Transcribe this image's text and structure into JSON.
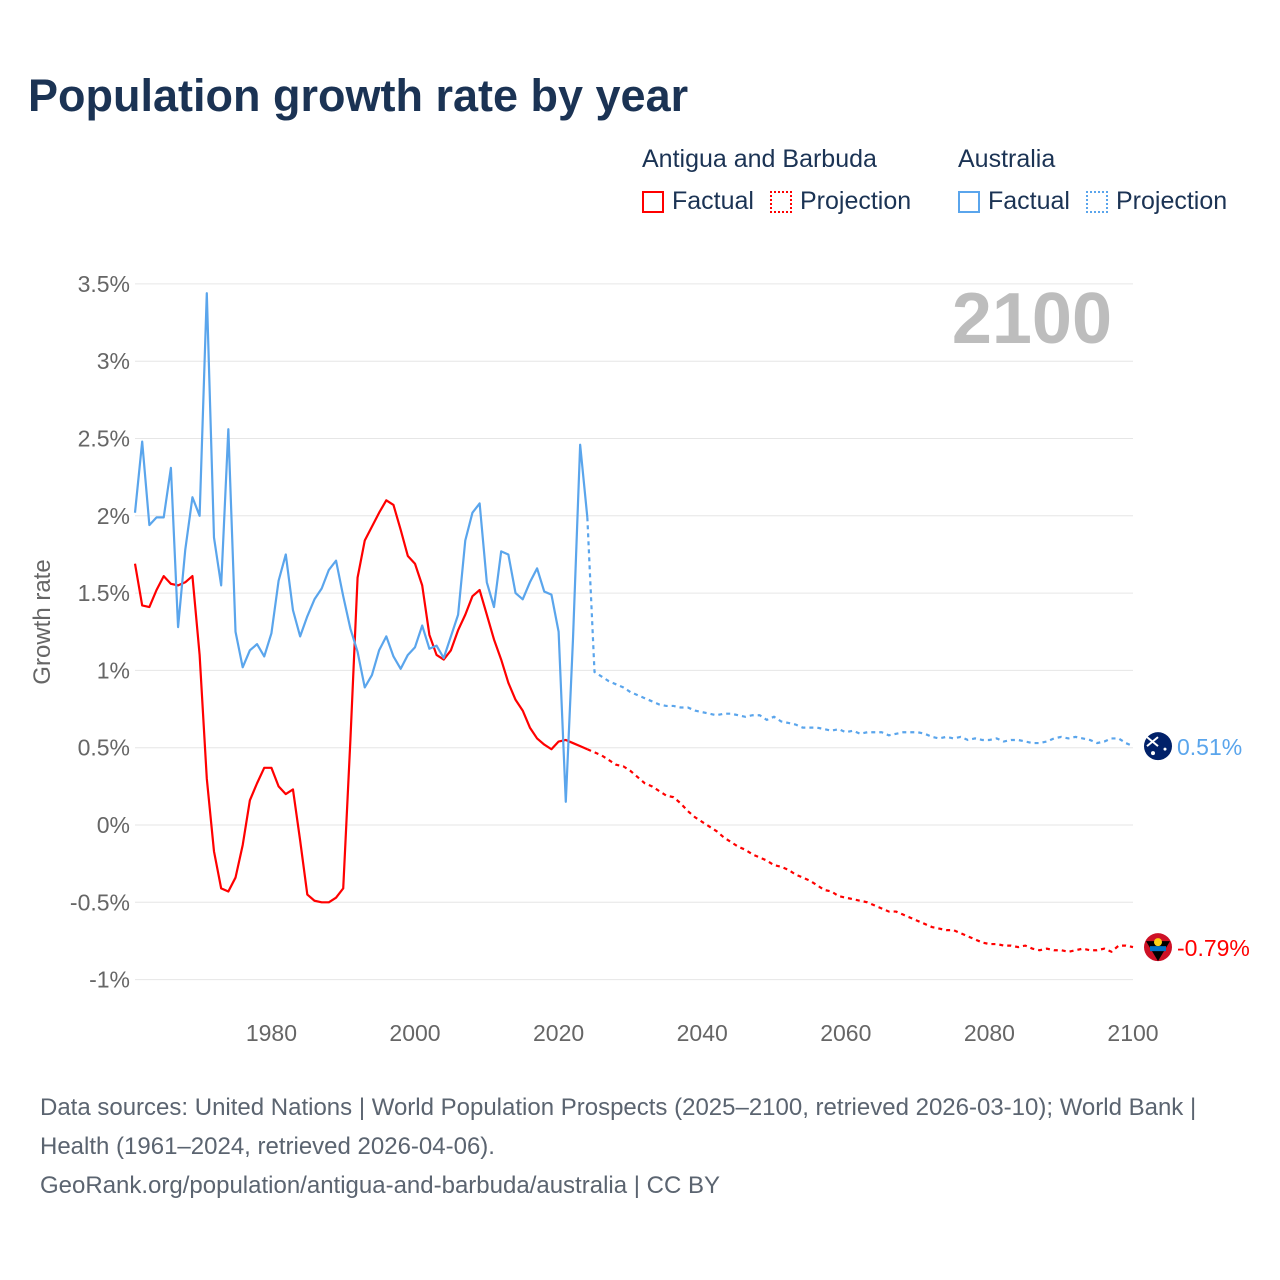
{
  "title": "Population growth rate by year",
  "legend": {
    "groups": [
      {
        "name": "Antigua and Barbuda",
        "factual": "Factual",
        "projection": "Projection",
        "color": "#ff0000"
      },
      {
        "name": "Australia",
        "factual": "Factual",
        "projection": "Projection",
        "color": "#5aa5ec"
      }
    ]
  },
  "year_overlay": "2100",
  "footer": {
    "sources": "Data sources: United Nations | World Population Prospects (2025–2100, retrieved 2026-03-10); World Bank | Health (1961–2024, retrieved 2026-04-06).",
    "credit": "GeoRank.org/population/antigua-and-barbuda/australia | CC BY"
  },
  "chart_data": {
    "type": "line",
    "title": "Population growth rate by year",
    "xlabel": "",
    "ylabel": "Growth rate",
    "xlim": [
      1961,
      2100
    ],
    "ylim": [
      -1.2,
      3.5
    ],
    "x_ticks": [
      "1980",
      "2000",
      "2020",
      "2040",
      "2060",
      "2080",
      "2100"
    ],
    "x_tick_values": [
      1980,
      2000,
      2020,
      2040,
      2060,
      2080,
      2100
    ],
    "y_ticks": [
      "3.5%",
      "3%",
      "2.5%",
      "2%",
      "1.5%",
      "1%",
      "0.5%",
      "0%",
      "-0.5%",
      "-1%"
    ],
    "y_tick_values": [
      3.5,
      3,
      2.5,
      2,
      1.5,
      1,
      0.5,
      0,
      -0.5,
      -1
    ],
    "grid": true,
    "legend_placement": "top-right",
    "series": [
      {
        "name": "Antigua and Barbuda",
        "color": "#ff0000",
        "end_label": "-0.79%",
        "factual_start": 1961,
        "factual": [
          1.69,
          1.42,
          1.41,
          1.52,
          1.61,
          1.56,
          1.55,
          1.57,
          1.61,
          1.1,
          0.3,
          -0.17,
          -0.41,
          -0.43,
          -0.34,
          -0.13,
          0.16,
          0.27,
          0.37,
          0.37,
          0.25,
          0.2,
          0.23,
          -0.1,
          -0.45,
          -0.49,
          -0.5,
          -0.5,
          -0.47,
          -0.41,
          0.55,
          1.6,
          1.84,
          1.93,
          2.02,
          2.1,
          2.07,
          1.91,
          1.74,
          1.69,
          1.55,
          1.23,
          1.1,
          1.07,
          1.13,
          1.26,
          1.36,
          1.48,
          1.52,
          1.36,
          1.2,
          1.07,
          0.92,
          0.81,
          0.74,
          0.63,
          0.56,
          0.52,
          0.49,
          0.54,
          0.55,
          0.53,
          0.51,
          0.49
        ],
        "projection_start": 2025,
        "projection": [
          0.47,
          0.45,
          0.42,
          0.39,
          0.38,
          0.35,
          0.31,
          0.27,
          0.25,
          0.22,
          0.19,
          0.18,
          0.14,
          0.09,
          0.05,
          0.02,
          -0.01,
          -0.04,
          -0.08,
          -0.11,
          -0.14,
          -0.16,
          -0.19,
          -0.21,
          -0.23,
          -0.26,
          -0.27,
          -0.29,
          -0.32,
          -0.34,
          -0.36,
          -0.39,
          -0.42,
          -0.43,
          -0.46,
          -0.47,
          -0.48,
          -0.49,
          -0.5,
          -0.52,
          -0.54,
          -0.56,
          -0.56,
          -0.58,
          -0.6,
          -0.62,
          -0.64,
          -0.66,
          -0.67,
          -0.68,
          -0.68,
          -0.7,
          -0.72,
          -0.74,
          -0.76,
          -0.77,
          -0.77,
          -0.78,
          -0.78,
          -0.79,
          -0.78,
          -0.8,
          -0.81,
          -0.8,
          -0.81,
          -0.81,
          -0.82,
          -0.81,
          -0.8,
          -0.81,
          -0.81,
          -0.8,
          -0.82,
          -0.78,
          -0.78,
          -0.79
        ]
      },
      {
        "name": "Australia",
        "color": "#5aa5ec",
        "end_label": "0.51%",
        "factual_start": 1961,
        "factual": [
          2.02,
          2.48,
          1.94,
          1.99,
          1.99,
          2.31,
          1.28,
          1.78,
          2.12,
          2.0,
          3.44,
          1.86,
          1.55,
          2.56,
          1.25,
          1.02,
          1.13,
          1.17,
          1.09,
          1.24,
          1.58,
          1.75,
          1.39,
          1.22,
          1.35,
          1.46,
          1.53,
          1.65,
          1.71,
          1.48,
          1.27,
          1.12,
          0.89,
          0.97,
          1.13,
          1.22,
          1.09,
          1.01,
          1.1,
          1.15,
          1.29,
          1.14,
          1.16,
          1.08,
          1.22,
          1.36,
          1.84,
          2.02,
          2.08,
          1.57,
          1.41,
          1.77,
          1.75,
          1.5,
          1.46,
          1.57,
          1.66,
          1.51,
          1.49,
          1.25,
          0.15,
          1.2,
          2.46,
          1.99
        ],
        "projection_start": 2025,
        "projection": [
          0.99,
          0.96,
          0.93,
          0.91,
          0.89,
          0.86,
          0.84,
          0.82,
          0.8,
          0.78,
          0.77,
          0.77,
          0.76,
          0.76,
          0.74,
          0.73,
          0.72,
          0.71,
          0.72,
          0.72,
          0.71,
          0.7,
          0.71,
          0.71,
          0.68,
          0.7,
          0.67,
          0.66,
          0.65,
          0.63,
          0.63,
          0.63,
          0.62,
          0.61,
          0.62,
          0.6,
          0.61,
          0.59,
          0.6,
          0.6,
          0.6,
          0.58,
          0.59,
          0.6,
          0.6,
          0.6,
          0.59,
          0.57,
          0.56,
          0.57,
          0.56,
          0.57,
          0.55,
          0.56,
          0.55,
          0.55,
          0.56,
          0.54,
          0.55,
          0.55,
          0.54,
          0.53,
          0.53,
          0.54,
          0.56,
          0.57,
          0.56,
          0.57,
          0.56,
          0.55,
          0.53,
          0.54,
          0.56,
          0.56,
          0.53,
          0.51
        ]
      }
    ]
  }
}
